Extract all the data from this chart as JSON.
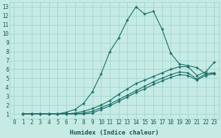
{
  "xlabel": "Humidex (Indice chaleur)",
  "bg_color": "#c5ebe4",
  "grid_color": "#9dcfca",
  "line_color": "#1a6e68",
  "xlim": [
    -0.5,
    23.5
  ],
  "ylim": [
    0.5,
    13.5
  ],
  "xticks": [
    0,
    1,
    2,
    3,
    4,
    5,
    6,
    7,
    8,
    9,
    10,
    11,
    12,
    13,
    14,
    15,
    16,
    17,
    18,
    19,
    20,
    21,
    22,
    23
  ],
  "yticks": [
    1,
    2,
    3,
    4,
    5,
    6,
    7,
    8,
    9,
    10,
    11,
    12,
    13
  ],
  "curves": [
    {
      "x": [
        1,
        2,
        3,
        4,
        5,
        6,
        7,
        8,
        9,
        10,
        11,
        12,
        13,
        14,
        15,
        16,
        17,
        18,
        19,
        20,
        21,
        22,
        23
      ],
      "y": [
        1.0,
        1.0,
        1.0,
        1.0,
        1.0,
        1.2,
        1.5,
        2.2,
        3.5,
        5.5,
        8.0,
        9.5,
        11.5,
        13.0,
        12.2,
        12.5,
        10.5,
        7.8,
        6.6,
        6.4,
        6.2,
        5.5,
        5.6
      ]
    },
    {
      "x": [
        1,
        2,
        3,
        4,
        5,
        6,
        7,
        8,
        9,
        10,
        11,
        12,
        13,
        14,
        15,
        16,
        17,
        18,
        19,
        20,
        21,
        22,
        23
      ],
      "y": [
        1.0,
        1.0,
        1.0,
        1.0,
        1.0,
        1.0,
        1.1,
        1.3,
        1.6,
        2.0,
        2.5,
        3.2,
        3.8,
        4.4,
        4.8,
        5.2,
        5.6,
        6.0,
        6.3,
        6.3,
        5.3,
        5.7,
        6.8
      ]
    },
    {
      "x": [
        1,
        2,
        3,
        4,
        5,
        6,
        7,
        8,
        9,
        10,
        11,
        12,
        13,
        14,
        15,
        16,
        17,
        18,
        19,
        20,
        21,
        22,
        23
      ],
      "y": [
        1.0,
        1.0,
        1.0,
        1.0,
        1.0,
        1.0,
        1.0,
        1.1,
        1.3,
        1.7,
        2.1,
        2.6,
        3.1,
        3.6,
        4.1,
        4.6,
        5.0,
        5.4,
        5.7,
        5.6,
        4.9,
        5.5,
        5.6
      ]
    },
    {
      "x": [
        1,
        2,
        3,
        4,
        5,
        6,
        7,
        8,
        9,
        10,
        11,
        12,
        13,
        14,
        15,
        16,
        17,
        18,
        19,
        20,
        21,
        22,
        23
      ],
      "y": [
        1.0,
        1.0,
        1.0,
        1.0,
        1.0,
        1.0,
        1.0,
        1.0,
        1.1,
        1.5,
        1.9,
        2.4,
        2.9,
        3.4,
        3.8,
        4.3,
        4.7,
        5.1,
        5.4,
        5.3,
        4.8,
        5.3,
        5.5
      ]
    }
  ]
}
